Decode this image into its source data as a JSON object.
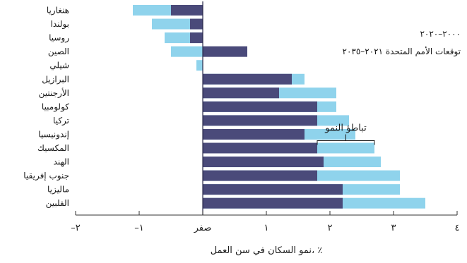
{
  "chart_data": {
    "type": "bar",
    "categories": [
      "هنغاريا",
      "بولندا",
      "روسيا",
      "الصين",
      "شيلي",
      "البرازيل",
      "الأرجنتين",
      "كولومبيا",
      "تركيا",
      "إندونيسيا",
      "المكسيك",
      "الهند",
      "جنوب إفريقيا",
      "ماليزيا",
      "الفلبين"
    ],
    "series": [
      {
        "name": "٢٠٠٠–٢٠٢٠",
        "color": "#4a4a7a",
        "values": [
          -0.5,
          -0.2,
          -0.2,
          0.7,
          0.0,
          1.4,
          1.2,
          1.8,
          1.8,
          1.6,
          1.8,
          1.9,
          1.8,
          2.2,
          2.2
        ]
      },
      {
        "name": "توقعات الأمم المتحدة ٢٠٢١–٢٠٣٥",
        "color": "#8fd3ec",
        "values": [
          -1.1,
          -0.8,
          -0.6,
          -0.5,
          -0.1,
          1.6,
          2.1,
          2.1,
          2.3,
          2.4,
          2.7,
          2.8,
          3.1,
          3.1,
          3.5
        ]
      }
    ],
    "xlabel": "نمو السكان في سن العمل، ٪",
    "ticks": [
      {
        "value": -2,
        "label": "–٢"
      },
      {
        "value": -1,
        "label": "–١"
      },
      {
        "value": 0,
        "label": "صفر"
      },
      {
        "value": 1,
        "label": "١"
      },
      {
        "value": 2,
        "label": "٢"
      },
      {
        "value": 3,
        "label": "٣"
      },
      {
        "value": 4,
        "label": "٤"
      }
    ],
    "xlim": [
      -2,
      4
    ],
    "annotation": {
      "text": "تباطؤ النمو",
      "category": "المكسيك"
    },
    "legend_position": "top-right",
    "grid": false
  }
}
